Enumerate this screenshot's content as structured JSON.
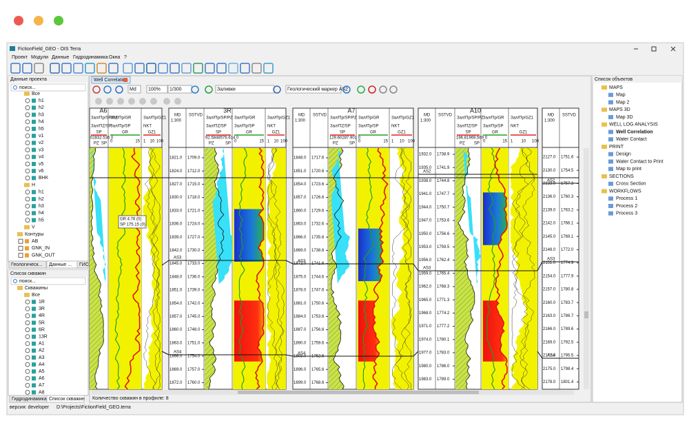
{
  "window": {
    "title": "FictionField_GEO - OIS Terra",
    "menu": [
      "Проект",
      "Модули",
      "Данные",
      "Гидродинамика",
      "Окна",
      "?"
    ]
  },
  "left_top": {
    "title": "Данные проекта",
    "search": "поиск...",
    "items": [
      "Все",
      "h1",
      "h2",
      "h3",
      "h4",
      "h5",
      "v1",
      "v2",
      "v3",
      "v4",
      "v5",
      "v6",
      "ВНК",
      "H",
      "h1",
      "h2",
      "h3",
      "h4",
      "h5",
      "V",
      "Контуры",
      "AB",
      "GNK_IN",
      "GNK_OUT"
    ],
    "tabs": [
      "Геологическ...",
      "Данные ...",
      "ГИС"
    ]
  },
  "left_bottom": {
    "title": "Список скважин",
    "search": "поиск...",
    "items": [
      "Скважины",
      "Все",
      "1R",
      "3R",
      "4R",
      "5R",
      "6R",
      "13R",
      "A1",
      "A2",
      "A3",
      "A4",
      "A5",
      "A6",
      "A7",
      "A8"
    ],
    "tabs": [
      "Гидродинамика",
      "Список скважин"
    ]
  },
  "correlation": {
    "tab": "Well Correlation",
    "mode": "Md",
    "zoom": "100%",
    "scale_input": "1/300",
    "fill": "Заливки",
    "marker": "Геологический маркер AS2",
    "header": {
      "md": "MD",
      "sstvd": "SSTVD",
      "scale": "1:300",
      "track_titles": [
        "Зал/Пр/SP/PZ",
        "Зал/Пр/GR",
        "Зал/Пр/GZ1"
      ],
      "track_subtitles": [
        "Зал/ПZ/SP",
        "Зал/Пр/SP",
        "NKT"
      ],
      "curves": [
        "SP",
        "GR",
        "GZ1",
        "PZ",
        "SP"
      ],
      "scale_labels": [
        "0",
        "15",
        "1",
        "10",
        "100"
      ]
    },
    "wells": [
      {
        "name": "A6",
        "header_values": "02832.536 0"
      },
      {
        "name": "3R",
        "header_values": "92.5848576.614 0",
        "md": [
          "1821.0",
          "1824.0",
          "1827.0",
          "1830.0",
          "1833.0",
          "1836.0",
          "1839.0",
          "1842.0",
          "1845.0",
          "1848.0",
          "1851.0",
          "1854.0",
          "1857.0",
          "1860.0",
          "1863.0",
          "1866.0",
          "1869.0",
          "1872.0"
        ],
        "sstvd": [
          "1709.0",
          "1712.0",
          "1715.0",
          "1718.0",
          "1721.0",
          "1724.0",
          "1727.0",
          "1730.0",
          "1733.0",
          "1736.0",
          "1739.0",
          "1742.0",
          "1745.0",
          "1748.0",
          "1751.0",
          "1754.0",
          "1757.0",
          "1760.0"
        ],
        "markers": [
          "AS3",
          "AS4"
        ]
      },
      {
        "name": "A7",
        "header_values": "129.60287.901 0",
        "md": [
          "1848.0",
          "1851.0",
          "1854.0",
          "1857.0",
          "1860.0",
          "1863.0",
          "1866.0",
          "1869.0",
          "1872.0",
          "1875.0",
          "1878.0",
          "1881.0",
          "1884.0",
          "1887.0",
          "1890.0",
          "1893.0",
          "1896.0",
          "1899.0"
        ],
        "sstvd": [
          "1717.6",
          "1720.6",
          "1723.6",
          "1726.6",
          "1729.6",
          "1732.6",
          "1735.6",
          "1738.6",
          "1741.6",
          "1744.6",
          "1747.6",
          "1750.6",
          "1753.6",
          "1756.6",
          "1759.6",
          "1762.6",
          "1765.6",
          "1768.6"
        ],
        "markers": [
          "AS3",
          "AS4"
        ]
      },
      {
        "name": "A10",
        "header_values": "196.81969.569 0",
        "md": [
          "1932.0",
          "1935.0",
          "1938.0",
          "1941.0",
          "1944.0",
          "1947.0",
          "1950.0",
          "1953.0",
          "1956.0",
          "1959.0",
          "1962.0",
          "1965.0",
          "1968.0",
          "1971.0",
          "1974.0",
          "1977.0",
          "1980.0",
          "1983.0"
        ],
        "sstvd": [
          "1738.9",
          "1741.9",
          "1744.8",
          "1747.7",
          "1750.7",
          "1753.6",
          "1756.6",
          "1759.5",
          "1762.4",
          "1765.4",
          "1768.3",
          "1771.3",
          "1774.2",
          "1777.2",
          "1780.1",
          "1783.0",
          "1786.0",
          "1789.0"
        ],
        "markers": [
          "AS2",
          "AS3"
        ]
      },
      {
        "name": "",
        "md": [
          "2127.0",
          "2130.0",
          "2133.0",
          "2136.0",
          "2139.0",
          "2142.0",
          "2145.0",
          "2148.0",
          "2151.0",
          "2154.0",
          "2157.0",
          "2160.0",
          "2163.0",
          "2166.0",
          "2169.0",
          "2172.0",
          "2175.0",
          "2178.0"
        ],
        "sstvd": [
          "1751.6",
          "1754.5",
          "1757.3",
          "1760.3",
          "1763.2",
          "1766.1",
          "1769.1",
          "1772.0",
          "1774.9",
          "1777.9",
          "1780.8",
          "1783.7",
          "1786.7",
          "1789.6",
          "1792.5",
          "1795.5",
          "1798.4",
          "1801.4"
        ],
        "markers": [
          "AS2",
          "AS3",
          "AS4"
        ]
      }
    ],
    "tooltip": [
      "GR 4.78 (0)",
      "SP 175.15 (0)"
    ],
    "status": "Количество скважин в профиле: 8"
  },
  "right": {
    "title": "Список объектов",
    "items": [
      "MAPS",
      "Map",
      "Map 2",
      "MAPS 3D",
      "Map 3D",
      "WELL LOG ANALYSIS",
      "Well Correlation",
      "Water Contact",
      "PRINT",
      "Design",
      "Water Contact to Print",
      "Map to print",
      "SECTIONS",
      "Cross Section",
      "WORKFLOWS",
      "Process 1",
      "Process 2",
      "Process 3"
    ]
  },
  "status_bar": {
    "version": "версия: developer",
    "path": "D:\\Projects\\FictionField_GEO.terra"
  }
}
